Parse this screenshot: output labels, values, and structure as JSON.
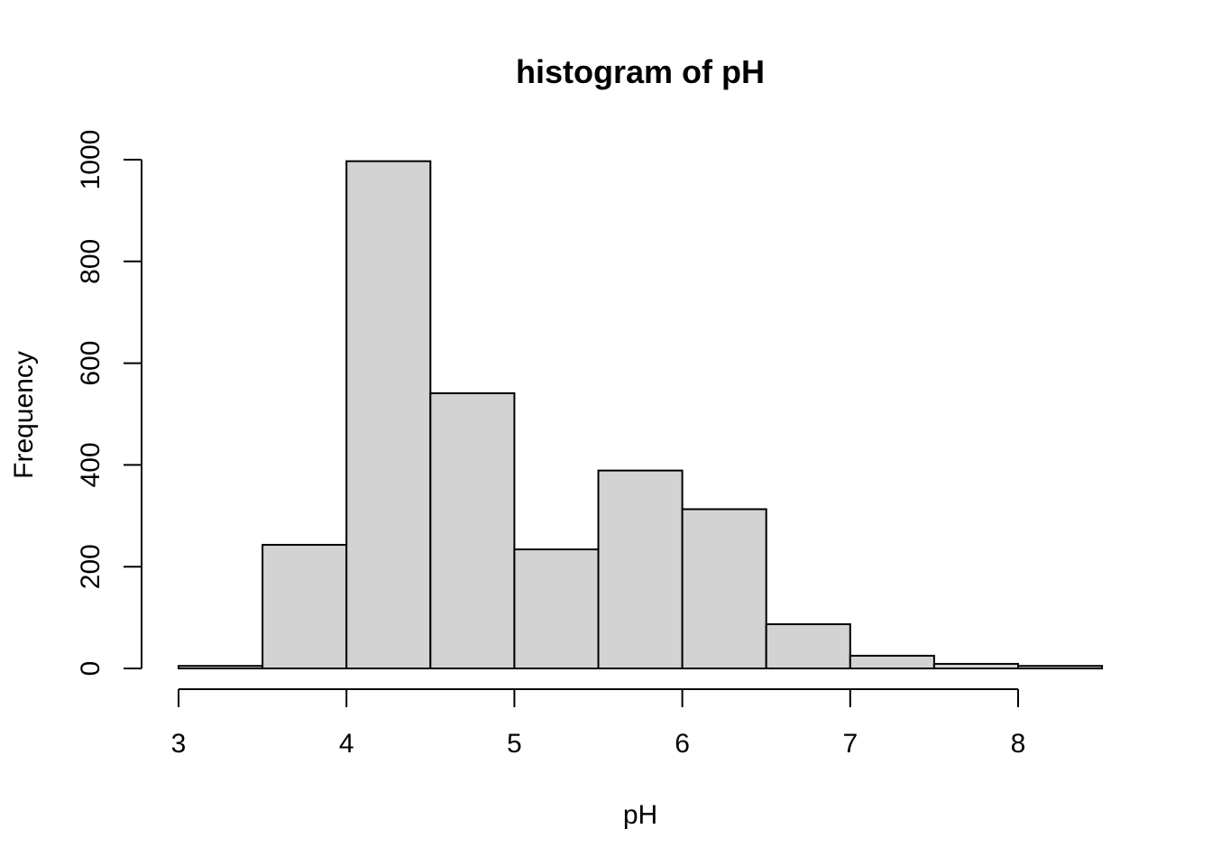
{
  "chart_data": {
    "type": "bar",
    "title": "histogram of pH",
    "xlabel": "pH",
    "ylabel": "Frequency",
    "bins": [
      {
        "from": 3.0,
        "to": 3.5,
        "count": 5
      },
      {
        "from": 3.5,
        "to": 4.0,
        "count": 243
      },
      {
        "from": 4.0,
        "to": 4.5,
        "count": 997
      },
      {
        "from": 4.5,
        "to": 5.0,
        "count": 541
      },
      {
        "from": 5.0,
        "to": 5.5,
        "count": 234
      },
      {
        "from": 5.5,
        "to": 6.0,
        "count": 389
      },
      {
        "from": 6.0,
        "to": 6.5,
        "count": 313
      },
      {
        "from": 6.5,
        "to": 7.0,
        "count": 87
      },
      {
        "from": 7.0,
        "to": 7.5,
        "count": 25
      },
      {
        "from": 7.5,
        "to": 8.0,
        "count": 9
      },
      {
        "from": 8.0,
        "to": 8.5,
        "count": 5
      }
    ],
    "xticks": [
      3,
      4,
      5,
      6,
      7,
      8
    ],
    "yticks": [
      0,
      200,
      400,
      600,
      800,
      1000
    ],
    "xlim": [
      3,
      8.5
    ],
    "ylim": [
      0,
      1000
    ],
    "grid": false,
    "bar_color": "#d3d3d3",
    "edge_color": "#000000"
  }
}
